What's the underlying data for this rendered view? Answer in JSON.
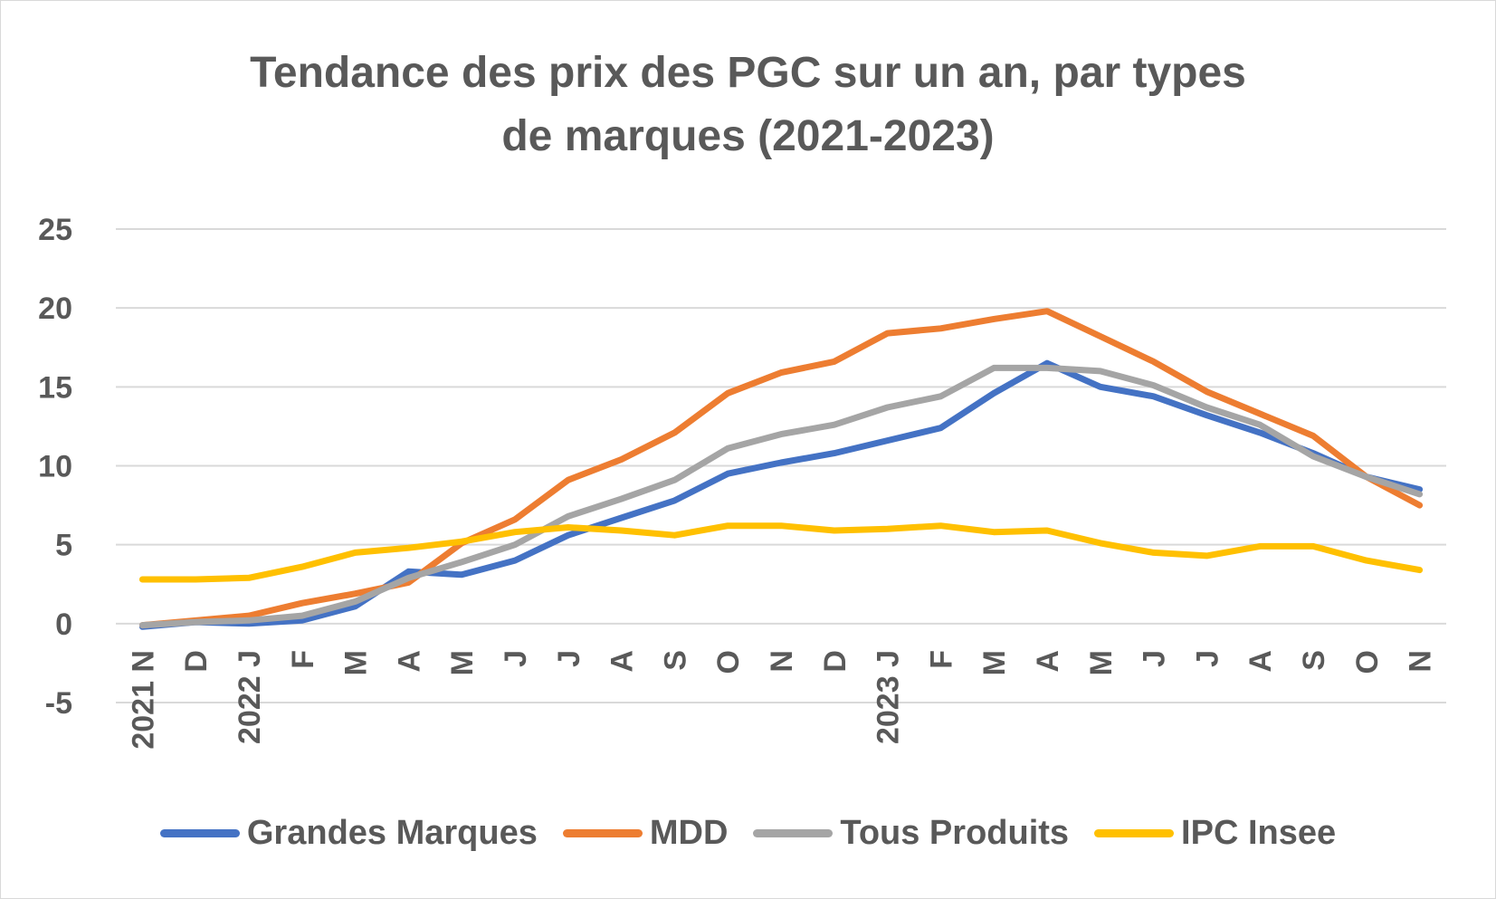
{
  "chart_data": {
    "type": "line",
    "title_lines": [
      "Tendance des prix des PGC sur un an, par types",
      "de marques (2021-2023)"
    ],
    "categories": [
      "2021 N",
      "D",
      "2022 J",
      "F",
      "M",
      "A",
      "M",
      "J",
      "J",
      "A",
      "S",
      "O",
      "N",
      "D",
      "2023 J",
      "F",
      "M",
      "A",
      "M",
      "J",
      "J",
      "A",
      "S",
      "O",
      "N"
    ],
    "ylim": [
      -5,
      25
    ],
    "yticks": [
      -5,
      0,
      5,
      10,
      15,
      20,
      25
    ],
    "ytick_labels": [
      "-5",
      "0",
      "5",
      "10",
      "15",
      "20",
      "25"
    ],
    "grid": true,
    "legend_position": "bottom",
    "series": [
      {
        "name": "Grandes Marques",
        "color": "#4472C4",
        "values": [
          -0.2,
          0.1,
          0.0,
          0.2,
          1.1,
          3.3,
          3.1,
          4.0,
          5.6,
          6.7,
          7.8,
          9.5,
          10.2,
          10.8,
          11.6,
          12.4,
          14.6,
          16.5,
          15.0,
          14.4,
          13.2,
          12.1,
          10.8,
          9.3,
          8.5
        ]
      },
      {
        "name": "MDD",
        "color": "#ED7D31",
        "values": [
          -0.1,
          0.2,
          0.5,
          1.3,
          1.9,
          2.6,
          5.1,
          6.6,
          9.1,
          10.4,
          12.1,
          14.6,
          15.9,
          16.6,
          18.4,
          18.7,
          19.3,
          19.8,
          18.2,
          16.6,
          14.7,
          13.3,
          11.9,
          9.3,
          7.5
        ]
      },
      {
        "name": "Tous Produits",
        "color": "#A5A5A5",
        "values": [
          -0.1,
          0.1,
          0.2,
          0.5,
          1.4,
          2.9,
          3.9,
          5.0,
          6.8,
          7.9,
          9.1,
          11.1,
          12.0,
          12.6,
          13.7,
          14.4,
          16.2,
          16.2,
          16.0,
          15.1,
          13.7,
          12.6,
          10.6,
          9.3,
          8.2
        ]
      },
      {
        "name": "IPC Insee",
        "color": "#FFC000",
        "values": [
          2.8,
          2.8,
          2.9,
          3.6,
          4.5,
          4.8,
          5.2,
          5.8,
          6.1,
          5.9,
          5.6,
          6.2,
          6.2,
          5.9,
          6.0,
          6.2,
          5.8,
          5.9,
          5.1,
          4.5,
          4.3,
          4.9,
          4.9,
          4.0,
          3.4
        ]
      }
    ]
  }
}
